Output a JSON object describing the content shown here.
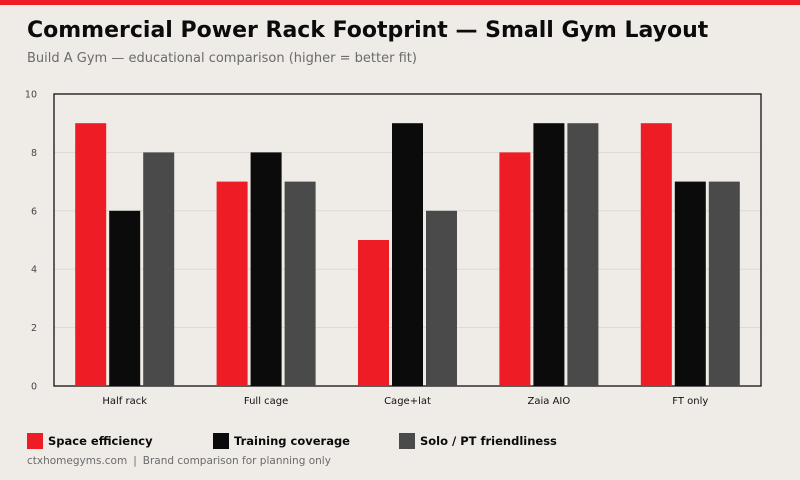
{
  "header": {
    "title": "Commercial Power Rack Footprint — Small Gym Layout",
    "subtitle": "Build A Gym — educational comparison (higher = better fit)"
  },
  "footer": {
    "site": "ctxhomegyms.com",
    "separator": "|",
    "note": "Brand comparison for planning only"
  },
  "colors": {
    "accent": "#ee1c24",
    "background": "#efece8",
    "series": [
      "#ee1c24",
      "#0b0b0b",
      "#4a4a4a"
    ]
  },
  "chart_data": {
    "type": "bar",
    "title": "Commercial Power Rack Footprint — Small Gym Layout",
    "subtitle": "Build A Gym — educational comparison (higher = better fit)",
    "xlabel": "",
    "ylabel": "",
    "ylim": [
      0,
      10
    ],
    "yticks": [
      0,
      2,
      4,
      6,
      8,
      10
    ],
    "grid": true,
    "legend_position": "bottom",
    "categories": [
      "Half rack",
      "Full cage",
      "Cage+lat",
      "Zaia AIO",
      "FT only"
    ],
    "series": [
      {
        "name": "Space efficiency",
        "color": "#ee1c24",
        "values": [
          9,
          7,
          5,
          8,
          9
        ]
      },
      {
        "name": "Training coverage",
        "color": "#0b0b0b",
        "values": [
          6,
          8,
          9,
          9,
          7
        ]
      },
      {
        "name": "Solo / PT friendliness",
        "color": "#4a4a4a",
        "values": [
          8,
          7,
          6,
          9,
          7
        ]
      }
    ]
  }
}
